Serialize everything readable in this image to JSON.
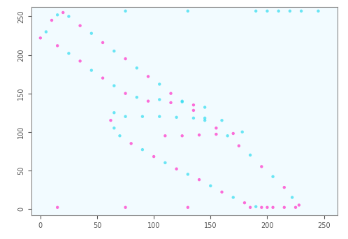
{
  "chart_data": {
    "type": "scatter",
    "xlim": [
      -8,
      262
    ],
    "ylim": [
      -8,
      262
    ],
    "xticks": [
      0,
      50,
      100,
      150,
      200,
      250
    ],
    "yticks": [
      0,
      50,
      100,
      150,
      200,
      250
    ],
    "grid": false,
    "series": [
      {
        "color": "#ff2fc8",
        "marker": "o",
        "x": [
          10,
          20,
          35,
          55,
          75,
          95,
          115,
          135,
          155,
          175,
          195,
          215,
          228,
          0,
          15,
          35,
          55,
          75,
          95,
          115,
          135,
          62,
          80,
          100,
          120,
          140,
          160,
          180,
          200,
          110,
          125,
          140,
          155,
          170,
          185,
          195,
          205,
          215,
          225,
          15,
          75,
          130
        ],
        "y": [
          245,
          255,
          238,
          216,
          195,
          172,
          150,
          128,
          105,
          82,
          55,
          28,
          5,
          222,
          212,
          192,
          170,
          150,
          140,
          138,
          135,
          115,
          85,
          68,
          52,
          38,
          22,
          8,
          2,
          95,
          95,
          96,
          97,
          98,
          2,
          2,
          2,
          2,
          2,
          2,
          2,
          2
        ]
      },
      {
        "color": "#2fdcf0",
        "marker": "o",
        "x": [
          15,
          25,
          45,
          65,
          85,
          105,
          125,
          145,
          165,
          185,
          205,
          222,
          5,
          25,
          45,
          65,
          85,
          105,
          125,
          145,
          160,
          178,
          65,
          65,
          70,
          90,
          110,
          130,
          150,
          170,
          190,
          75,
          90,
          105,
          120,
          135,
          145,
          190,
          200,
          210,
          220,
          230,
          75,
          130,
          245
        ],
        "y": [
          252,
          250,
          228,
          205,
          183,
          162,
          140,
          115,
          95,
          70,
          42,
          15,
          230,
          202,
          180,
          160,
          145,
          142,
          139,
          132,
          115,
          100,
          125,
          105,
          95,
          77,
          60,
          45,
          30,
          15,
          3,
          120,
          120,
          120,
          119,
          118,
          118,
          257,
          257,
          257,
          257,
          257,
          257,
          257,
          257
        ]
      }
    ]
  }
}
